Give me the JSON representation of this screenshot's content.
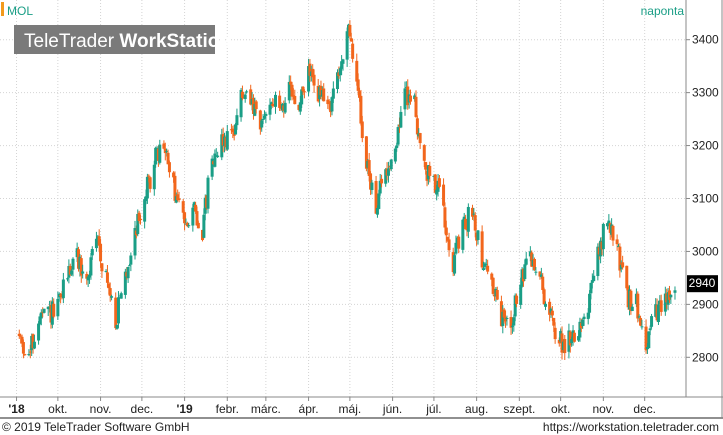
{
  "symbol": "MOL",
  "interval": "naponta",
  "watermark": {
    "part1": "TeleTrader ",
    "part2": "WorkStation"
  },
  "footer": {
    "copyright": "© 2019 TeleTrader Software GmbH",
    "url": "https://workstation.teletrader.com"
  },
  "colors": {
    "up": "#1a9e86",
    "down": "#f2661c",
    "grid": "#d4d4d4",
    "axis_label": "#222222",
    "symbol_label": "#1a9e86",
    "interval_label": "#1a9e86",
    "symbol_marker": "#f29a1c",
    "last_price_bg": "#000000",
    "watermark_bg": "#7a7a7a"
  },
  "chart_data": {
    "type": "candlestick",
    "last_price": "2940",
    "last_price_value": 2940,
    "ylim": [
      2725,
      3475
    ],
    "y_ticks": [
      2800,
      2900,
      3000,
      3100,
      3200,
      3300,
      3400
    ],
    "y_tick_labels": [
      "2800",
      "2900",
      "3000",
      "3100",
      "3200",
      "3300",
      "3400"
    ],
    "x_range": [
      "2018-08-20",
      "2019-12-31"
    ],
    "x_ticks": [
      {
        "date": "2018-09-01",
        "label": "'18"
      },
      {
        "date": "2018-10-01",
        "label": "okt."
      },
      {
        "date": "2018-11-01",
        "label": "nov."
      },
      {
        "date": "2018-12-01",
        "label": "dec."
      },
      {
        "date": "2019-01-01",
        "label": "'19"
      },
      {
        "date": "2019-02-01",
        "label": "febr."
      },
      {
        "date": "2019-03-01",
        "label": "márc."
      },
      {
        "date": "2019-04-01",
        "label": "ápr."
      },
      {
        "date": "2019-05-01",
        "label": "máj."
      },
      {
        "date": "2019-06-01",
        "label": "jún."
      },
      {
        "date": "2019-07-01",
        "label": "júl."
      },
      {
        "date": "2019-08-01",
        "label": "aug."
      },
      {
        "date": "2019-09-01",
        "label": "szept."
      },
      {
        "date": "2019-10-01",
        "label": "okt."
      },
      {
        "date": "2019-11-01",
        "label": "nov."
      },
      {
        "date": "2019-12-01",
        "label": "dec."
      }
    ],
    "close_series": [
      [
        "2018-09-03",
        2840
      ],
      [
        "2018-09-10",
        2800
      ],
      [
        "2018-09-17",
        2870
      ],
      [
        "2018-09-24",
        2880
      ],
      [
        "2018-10-01",
        2890
      ],
      [
        "2018-10-08",
        2960
      ],
      [
        "2018-10-15",
        2990
      ],
      [
        "2018-10-22",
        2940
      ],
      [
        "2018-10-29",
        3030
      ],
      [
        "2018-11-05",
        2950
      ],
      [
        "2018-11-12",
        2870
      ],
      [
        "2018-11-19",
        2950
      ],
      [
        "2018-11-26",
        3040
      ],
      [
        "2018-12-03",
        3100
      ],
      [
        "2018-12-10",
        3170
      ],
      [
        "2018-12-17",
        3200
      ],
      [
        "2018-12-24",
        3120
      ],
      [
        "2018-12-31",
        3060
      ],
      [
        "2019-01-07",
        3080
      ],
      [
        "2019-01-14",
        3040
      ],
      [
        "2019-01-21",
        3180
      ],
      [
        "2019-01-28",
        3210
      ],
      [
        "2019-02-04",
        3220
      ],
      [
        "2019-02-11",
        3290
      ],
      [
        "2019-02-18",
        3280
      ],
      [
        "2019-02-25",
        3230
      ],
      [
        "2019-03-04",
        3290
      ],
      [
        "2019-03-11",
        3270
      ],
      [
        "2019-03-18",
        3300
      ],
      [
        "2019-03-25",
        3270
      ],
      [
        "2019-04-01",
        3340
      ],
      [
        "2019-04-08",
        3300
      ],
      [
        "2019-04-15",
        3270
      ],
      [
        "2019-04-22",
        3320
      ],
      [
        "2019-04-29",
        3420
      ],
      [
        "2019-05-06",
        3330
      ],
      [
        "2019-05-13",
        3160
      ],
      [
        "2019-05-20",
        3090
      ],
      [
        "2019-05-27",
        3150
      ],
      [
        "2019-06-03",
        3200
      ],
      [
        "2019-06-10",
        3300
      ],
      [
        "2019-06-17",
        3280
      ],
      [
        "2019-06-24",
        3150
      ],
      [
        "2019-07-01",
        3140
      ],
      [
        "2019-07-08",
        3080
      ],
      [
        "2019-07-15",
        2980
      ],
      [
        "2019-07-22",
        3040
      ],
      [
        "2019-07-29",
        3080
      ],
      [
        "2019-08-05",
        2990
      ],
      [
        "2019-08-12",
        2940
      ],
      [
        "2019-08-19",
        2870
      ],
      [
        "2019-08-26",
        2870
      ],
      [
        "2019-09-02",
        2940
      ],
      [
        "2019-09-09",
        2990
      ],
      [
        "2019-09-16",
        2950
      ],
      [
        "2019-09-23",
        2880
      ],
      [
        "2019-09-30",
        2830
      ],
      [
        "2019-10-07",
        2830
      ],
      [
        "2019-10-14",
        2860
      ],
      [
        "2019-10-21",
        2900
      ],
      [
        "2019-10-28",
        2990
      ],
      [
        "2019-11-04",
        3060
      ],
      [
        "2019-11-11",
        3010
      ],
      [
        "2019-11-18",
        2910
      ],
      [
        "2019-11-25",
        2900
      ],
      [
        "2019-12-02",
        2830
      ],
      [
        "2019-12-09",
        2880
      ],
      [
        "2019-12-16",
        2900
      ],
      [
        "2019-12-23",
        2940
      ]
    ]
  }
}
